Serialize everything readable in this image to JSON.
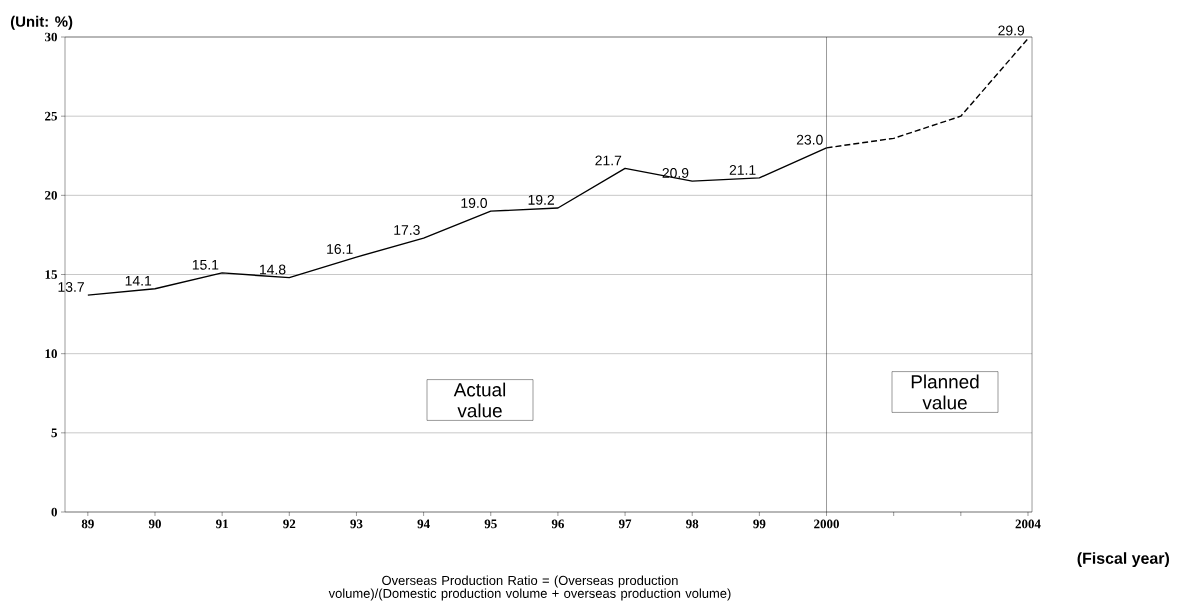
{
  "chart_data": {
    "type": "line",
    "ylabel": "(Unit: %)",
    "xlabel": "(Fiscal year)",
    "categories": [
      "89",
      "90",
      "91",
      "92",
      "93",
      "94",
      "95",
      "96",
      "97",
      "98",
      "99",
      "2000",
      null,
      null,
      "2004"
    ],
    "series": [
      {
        "color": "#000000",
        "line_style": "solid",
        "values": [
          13.7,
          14.1,
          15.1,
          14.8,
          16.1,
          17.3,
          19.0,
          19.2,
          21.7,
          20.9,
          21.1,
          23.0,
          null,
          null,
          null
        ],
        "value_labels": [
          "13.7",
          "14.1",
          "15.1",
          "14.8",
          "16.1",
          "17.3",
          "19.0",
          "19.2",
          "21.7",
          "20.9",
          "21.1",
          "23.0",
          null,
          null,
          null
        ]
      },
      {
        "color": "#000000",
        "line_style": "dashed",
        "values": [
          null,
          null,
          null,
          null,
          null,
          null,
          null,
          null,
          null,
          null,
          null,
          23.0,
          23.6,
          25.0,
          29.9
        ],
        "value_labels": [
          null,
          null,
          null,
          null,
          null,
          null,
          null,
          null,
          null,
          null,
          null,
          null,
          null,
          null,
          "29.9"
        ]
      }
    ],
    "ylim": [
      0,
      30
    ],
    "yticks": [
      0,
      5,
      10,
      15,
      20,
      25,
      30
    ],
    "grid": "y",
    "marker": "none",
    "ref_lines": [
      {
        "axis": "x",
        "value": "2000",
        "color": "#000000"
      }
    ],
    "annotations": [
      "Actual value",
      "Planned value",
      "Overseas Production Ratio = (Overseas production volume)/(Domestic production volume + overseas production volume)"
    ]
  }
}
